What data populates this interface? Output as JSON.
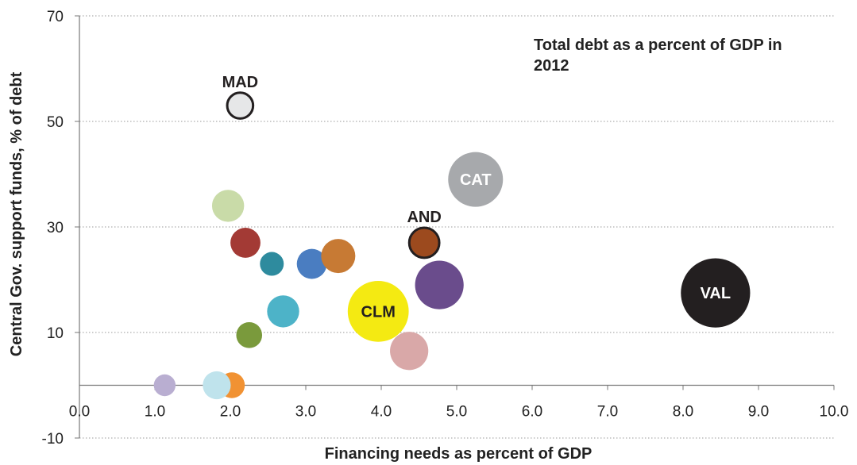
{
  "chart_data": {
    "type": "scatter",
    "title": "",
    "annotation_line1": "Total debt as a percent of GDP in",
    "annotation_line2": "2012",
    "xlabel": "Financing needs as percent of GDP",
    "ylabel": "Central Gov. support funds, % of debt",
    "xlim": [
      0,
      10
    ],
    "ylim": [
      -10,
      70
    ],
    "x_ticks": [
      "0.0",
      "1.0",
      "2.0",
      "3.0",
      "4.0",
      "5.0",
      "6.0",
      "7.0",
      "8.0",
      "9.0",
      "10.0"
    ],
    "y_ticks": [
      "-10",
      "10",
      "30",
      "50",
      "70"
    ],
    "grid": "horizontal dotted",
    "size_meaning": "Total debt as a percent of GDP in 2012",
    "points": [
      {
        "label": "MAD",
        "x": 2.13,
        "y": 53,
        "size": 11,
        "color": "#e6e7e8",
        "outline": "#231f20",
        "label_position": "above",
        "label_color": "#231f20"
      },
      {
        "label": "",
        "x": 1.97,
        "y": 34,
        "size": 14,
        "color": "#c9dba8"
      },
      {
        "label": "",
        "x": 2.2,
        "y": 27,
        "size": 13,
        "color": "#a33a35"
      },
      {
        "label": "",
        "x": 2.55,
        "y": 23,
        "size": 10,
        "color": "#2e8b9e"
      },
      {
        "label": "",
        "x": 3.08,
        "y": 23,
        "size": 13,
        "color": "#4a7dc1"
      },
      {
        "label": "",
        "x": 3.43,
        "y": 24.5,
        "size": 15,
        "color": "#c77a34"
      },
      {
        "label": "AND",
        "x": 4.57,
        "y": 27,
        "size": 13,
        "color": "#9c4a1e",
        "outline": "#231f20",
        "label_position": "above",
        "label_color": "#231f20"
      },
      {
        "label": "CAT",
        "x": 5.25,
        "y": 39,
        "size": 25,
        "color": "#a7a9ac",
        "label_position": "center",
        "label_color": "#ffffff"
      },
      {
        "label": "",
        "x": 4.77,
        "y": 19,
        "size": 22,
        "color": "#6a4c8c"
      },
      {
        "label": "",
        "x": 2.7,
        "y": 14,
        "size": 14,
        "color": "#4db3c8"
      },
      {
        "label": "CLM",
        "x": 3.96,
        "y": 14,
        "size": 28,
        "color": "#f4ea12",
        "label_position": "center",
        "label_color": "#231f20"
      },
      {
        "label": "",
        "x": 2.25,
        "y": 9.5,
        "size": 11,
        "color": "#7a9a3c"
      },
      {
        "label": "",
        "x": 4.37,
        "y": 6.5,
        "size": 17,
        "color": "#d9a8a8"
      },
      {
        "label": "VAL",
        "x": 8.43,
        "y": 17.5,
        "size": 32,
        "color": "#231f20",
        "label_position": "center",
        "label_color": "#ffffff"
      },
      {
        "label": "",
        "x": 1.13,
        "y": 0,
        "size": 9,
        "color": "#b9aed1"
      },
      {
        "label": "",
        "x": 2.02,
        "y": 0,
        "size": 11,
        "color": "#f19233"
      },
      {
        "label": "",
        "x": 1.82,
        "y": 0,
        "size": 12,
        "color": "#bfe3ec"
      }
    ]
  }
}
